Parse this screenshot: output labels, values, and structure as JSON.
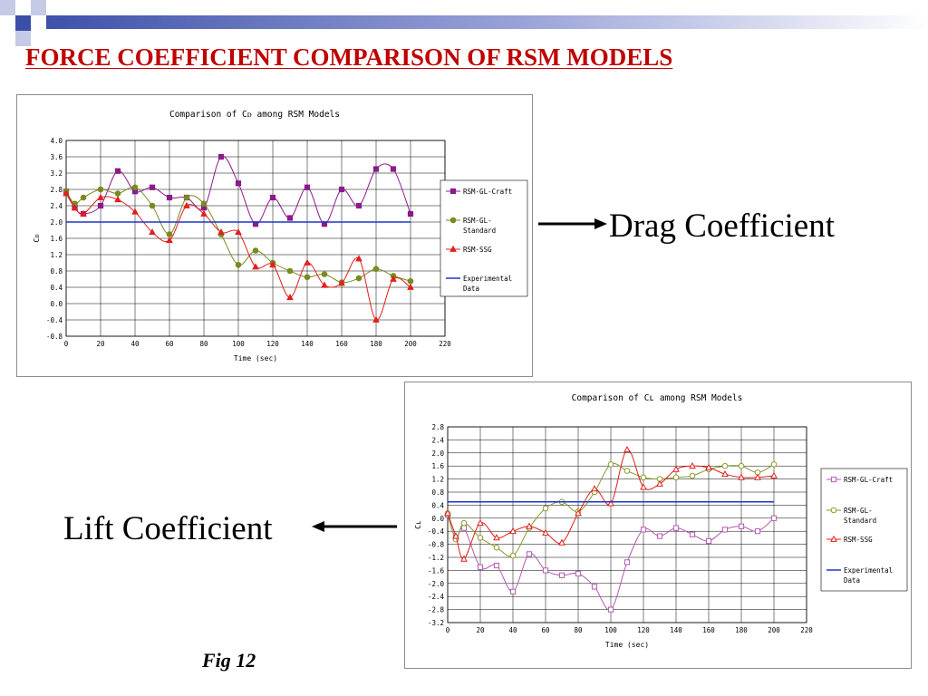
{
  "slide": {
    "title": "FORCE COEFFICIENT COMPARISON OF RSM MODELS",
    "drag_label": "Drag Coefficient",
    "lift_label": "Lift Coefficient",
    "fig_caption": "Fig 12",
    "colors": {
      "title": "#c00000",
      "deco_blue": "#3b4fa8",
      "deco_light": "#c5cbe6"
    }
  },
  "chart_data": [
    {
      "type": "line",
      "title": "Comparison of Cᴅ among RSM Models",
      "xlabel": "Time (sec)",
      "ylabel": "Cᴅ",
      "xlim": [
        0,
        220
      ],
      "ylim": [
        -0.8,
        4.0
      ],
      "xticks": [
        0,
        20,
        40,
        60,
        80,
        100,
        120,
        140,
        160,
        180,
        200,
        220
      ],
      "yticks": [
        -0.8,
        -0.4,
        0.0,
        0.4,
        0.8,
        1.2,
        1.6,
        2.0,
        2.4,
        2.8,
        3.2,
        3.6,
        4.0
      ],
      "ytick_decimals": 1,
      "grid": true,
      "legend_position": "right",
      "series": [
        {
          "name": "RSM-GL-Craft",
          "color": "#8b1a8b",
          "marker": "square-filled",
          "x": [
            0,
            5,
            10,
            20,
            30,
            40,
            50,
            60,
            70,
            80,
            90,
            100,
            110,
            120,
            130,
            140,
            150,
            160,
            170,
            180,
            190,
            200
          ],
          "y": [
            2.75,
            2.35,
            2.2,
            2.4,
            3.25,
            2.75,
            2.85,
            2.6,
            2.6,
            2.35,
            3.6,
            2.95,
            1.95,
            2.6,
            2.1,
            2.85,
            1.95,
            2.8,
            2.4,
            3.3,
            3.3,
            2.2
          ]
        },
        {
          "name": "RSM-GL-Standard",
          "color": "#7a8a1f",
          "marker": "circle-filled",
          "x": [
            0,
            5,
            10,
            20,
            30,
            40,
            50,
            60,
            70,
            80,
            90,
            100,
            110,
            120,
            130,
            140,
            150,
            160,
            170,
            180,
            190,
            200
          ],
          "y": [
            2.75,
            2.45,
            2.6,
            2.8,
            2.7,
            2.85,
            2.4,
            1.7,
            2.6,
            2.45,
            1.7,
            0.95,
            1.3,
            1.0,
            0.8,
            0.65,
            0.72,
            0.52,
            0.62,
            0.85,
            0.68,
            0.55
          ]
        },
        {
          "name": "RSM-SSG",
          "color": "#e0201c",
          "marker": "triangle-filled",
          "x": [
            0,
            5,
            10,
            20,
            30,
            40,
            50,
            60,
            70,
            80,
            90,
            100,
            110,
            120,
            130,
            140,
            150,
            160,
            170,
            180,
            190,
            200
          ],
          "y": [
            2.7,
            2.35,
            2.2,
            2.6,
            2.55,
            2.25,
            1.75,
            1.55,
            2.4,
            2.2,
            1.75,
            1.75,
            0.9,
            0.95,
            0.15,
            1.0,
            0.45,
            0.5,
            1.1,
            -0.4,
            0.6,
            0.4
          ]
        },
        {
          "name": "Experimental Data",
          "color": "#1f35c9",
          "marker": "none",
          "x": [
            0,
            200
          ],
          "y": [
            2.0,
            2.0
          ]
        }
      ]
    },
    {
      "type": "line",
      "title": "Comparison of Cʟ among RSM Models",
      "xlabel": "Time (sec)",
      "ylabel": "Cʟ",
      "xlim": [
        0,
        220
      ],
      "ylim": [
        -3.2,
        2.8
      ],
      "xticks": [
        0,
        20,
        40,
        60,
        80,
        100,
        120,
        140,
        160,
        180,
        200,
        220
      ],
      "yticks": [
        -3.2,
        -2.8,
        -2.4,
        -2.0,
        -1.6,
        -1.2,
        -0.8,
        -0.4,
        0.0,
        0.4,
        0.8,
        1.2,
        1.6,
        2.0,
        2.4,
        2.8
      ],
      "ytick_decimals": 1,
      "grid": true,
      "legend_position": "right",
      "series": [
        {
          "name": "RSM-GL-Craft",
          "color": "#b25ab2",
          "marker": "square-open",
          "x": [
            0,
            5,
            10,
            20,
            30,
            40,
            50,
            60,
            70,
            80,
            90,
            100,
            110,
            120,
            130,
            140,
            150,
            160,
            170,
            180,
            190,
            200
          ],
          "y": [
            0.1,
            -0.6,
            -0.3,
            -1.5,
            -1.45,
            -2.25,
            -1.1,
            -1.6,
            -1.75,
            -1.7,
            -2.1,
            -2.8,
            -1.35,
            -0.35,
            -0.55,
            -0.3,
            -0.5,
            -0.7,
            -0.35,
            -0.25,
            -0.4,
            0.0
          ]
        },
        {
          "name": "RSM-GL-Standard",
          "color": "#8a9a2a",
          "marker": "circle-open",
          "x": [
            0,
            5,
            10,
            20,
            30,
            40,
            50,
            60,
            70,
            80,
            90,
            100,
            110,
            120,
            130,
            140,
            150,
            160,
            170,
            180,
            190,
            200
          ],
          "y": [
            0.15,
            -0.65,
            -0.15,
            -0.6,
            -0.9,
            -1.15,
            -0.3,
            0.3,
            0.5,
            0.2,
            0.8,
            1.65,
            1.45,
            1.25,
            1.2,
            1.25,
            1.3,
            1.5,
            1.6,
            1.6,
            1.4,
            1.65
          ]
        },
        {
          "name": "RSM-SSG",
          "color": "#e0201c",
          "marker": "triangle-open",
          "x": [
            0,
            5,
            10,
            20,
            30,
            40,
            50,
            60,
            70,
            80,
            90,
            100,
            110,
            120,
            130,
            140,
            150,
            160,
            170,
            180,
            190,
            200
          ],
          "y": [
            0.15,
            -0.55,
            -1.25,
            -0.15,
            -0.6,
            -0.4,
            -0.25,
            -0.45,
            -0.75,
            0.15,
            0.9,
            0.45,
            2.1,
            0.95,
            1.05,
            1.5,
            1.6,
            1.55,
            1.35,
            1.25,
            1.25,
            1.3
          ]
        },
        {
          "name": "Experimental Data",
          "color": "#1f35c9",
          "marker": "none",
          "x": [
            0,
            200
          ],
          "y": [
            0.5,
            0.5
          ]
        }
      ]
    }
  ]
}
